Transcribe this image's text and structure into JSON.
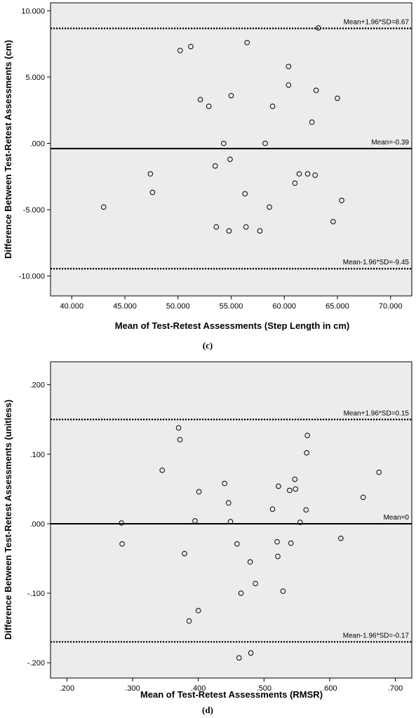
{
  "chart_data": [
    {
      "type": "scatter",
      "panel_label": "(c)",
      "xlabel": "Mean of Test-Retest Assessments (Step Length in cm)",
      "ylabel": "Difference Between Test-Retest Assessments (cm)",
      "xlim": [
        38,
        72
      ],
      "ylim": [
        -11.5,
        10.6
      ],
      "xticks": [
        40,
        45,
        50,
        55,
        60,
        65,
        70
      ],
      "xtick_labels": [
        "40.000",
        "45.000",
        "50.000",
        "55.000",
        "60.000",
        "65.000",
        "70.000"
      ],
      "yticks": [
        10,
        5,
        0,
        -5,
        -10
      ],
      "ytick_labels": [
        "10.000",
        "5.000",
        ".000",
        "-5.000",
        "-10.000"
      ],
      "grid": false,
      "reference_lines": [
        {
          "label": "Mean+1.96*SD=8.67",
          "value": 8.67,
          "style": "dotted"
        },
        {
          "label": "Mean=-0.39",
          "value": -0.39,
          "style": "solid"
        },
        {
          "label": "Mean-1.96*SD=-9.45",
          "value": -9.45,
          "style": "dotted"
        }
      ],
      "points": [
        {
          "x": 43.0,
          "y": -4.8
        },
        {
          "x": 47.4,
          "y": -2.3
        },
        {
          "x": 47.6,
          "y": -3.7
        },
        {
          "x": 50.2,
          "y": 7.0
        },
        {
          "x": 51.2,
          "y": 7.3
        },
        {
          "x": 52.1,
          "y": 3.3
        },
        {
          "x": 52.9,
          "y": 2.8
        },
        {
          "x": 53.5,
          "y": -1.7
        },
        {
          "x": 53.6,
          "y": -6.3
        },
        {
          "x": 54.3,
          "y": 0.0
        },
        {
          "x": 54.8,
          "y": -6.6
        },
        {
          "x": 54.9,
          "y": -1.2
        },
        {
          "x": 55.0,
          "y": 3.6
        },
        {
          "x": 56.3,
          "y": -3.8
        },
        {
          "x": 56.4,
          "y": -6.3
        },
        {
          "x": 56.5,
          "y": 7.6
        },
        {
          "x": 57.7,
          "y": -6.6
        },
        {
          "x": 58.2,
          "y": 0.0
        },
        {
          "x": 58.6,
          "y": -4.8
        },
        {
          "x": 58.9,
          "y": 2.8
        },
        {
          "x": 60.4,
          "y": 5.8
        },
        {
          "x": 60.4,
          "y": 4.4
        },
        {
          "x": 61.0,
          "y": -3.0
        },
        {
          "x": 61.4,
          "y": -2.3
        },
        {
          "x": 62.2,
          "y": -2.3
        },
        {
          "x": 62.6,
          "y": 1.6
        },
        {
          "x": 62.9,
          "y": -2.4
        },
        {
          "x": 63.0,
          "y": 4.0
        },
        {
          "x": 63.2,
          "y": 8.7
        },
        {
          "x": 64.6,
          "y": -5.9
        },
        {
          "x": 65.0,
          "y": 3.4
        },
        {
          "x": 65.4,
          "y": -4.3
        }
      ]
    },
    {
      "type": "scatter",
      "panel_label": "(d)",
      "xlabel": "Mean of Test-Retest Assessments (RMSR)",
      "ylabel": "Difference Between Test-Retest Assessments (unitless)",
      "xlim": [
        0.175,
        0.725
      ],
      "ylim": [
        -0.222,
        0.233
      ],
      "xticks": [
        0.2,
        0.3,
        0.4,
        0.5,
        0.6,
        0.7
      ],
      "xtick_labels": [
        ".200",
        ".300",
        ".400",
        ".500",
        ".600",
        ".700"
      ],
      "yticks": [
        0.2,
        0.1,
        0.0,
        -0.1,
        -0.2
      ],
      "ytick_labels": [
        ".200",
        ".100",
        ".000",
        "-.100",
        "-.200"
      ],
      "grid": false,
      "reference_lines": [
        {
          "label": "Mean+1.96*SD=0.15",
          "value": 0.15,
          "style": "dotted"
        },
        {
          "label": "Mean=0",
          "value": 0.0,
          "style": "solid"
        },
        {
          "label": "Mean-1.96*SD=-0.17",
          "value": -0.17,
          "style": "dotted"
        }
      ],
      "points": [
        {
          "x": 0.283,
          "y": 0.001
        },
        {
          "x": 0.284,
          "y": -0.029
        },
        {
          "x": 0.345,
          "y": 0.077
        },
        {
          "x": 0.37,
          "y": 0.138
        },
        {
          "x": 0.372,
          "y": 0.121
        },
        {
          "x": 0.379,
          "y": -0.043
        },
        {
          "x": 0.386,
          "y": -0.14
        },
        {
          "x": 0.395,
          "y": 0.004
        },
        {
          "x": 0.4,
          "y": -0.125
        },
        {
          "x": 0.401,
          "y": 0.046
        },
        {
          "x": 0.44,
          "y": 0.058
        },
        {
          "x": 0.446,
          "y": 0.03
        },
        {
          "x": 0.449,
          "y": 0.003
        },
        {
          "x": 0.459,
          "y": -0.029
        },
        {
          "x": 0.462,
          "y": -0.193
        },
        {
          "x": 0.465,
          "y": -0.1
        },
        {
          "x": 0.479,
          "y": -0.055
        },
        {
          "x": 0.48,
          "y": -0.186
        },
        {
          "x": 0.487,
          "y": -0.086
        },
        {
          "x": 0.513,
          "y": 0.021
        },
        {
          "x": 0.52,
          "y": -0.026
        },
        {
          "x": 0.521,
          "y": -0.047
        },
        {
          "x": 0.522,
          "y": 0.054
        },
        {
          "x": 0.529,
          "y": -0.097
        },
        {
          "x": 0.539,
          "y": 0.048
        },
        {
          "x": 0.541,
          "y": -0.028
        },
        {
          "x": 0.547,
          "y": 0.064
        },
        {
          "x": 0.548,
          "y": 0.05
        },
        {
          "x": 0.555,
          "y": 0.002
        },
        {
          "x": 0.564,
          "y": 0.02
        },
        {
          "x": 0.565,
          "y": 0.102
        },
        {
          "x": 0.566,
          "y": 0.127
        },
        {
          "x": 0.617,
          "y": -0.021
        },
        {
          "x": 0.651,
          "y": 0.038
        },
        {
          "x": 0.675,
          "y": 0.074
        }
      ]
    }
  ],
  "colors": {
    "plot_background": "#ececec",
    "axis": "#000000",
    "marker_edge": "#000000"
  }
}
